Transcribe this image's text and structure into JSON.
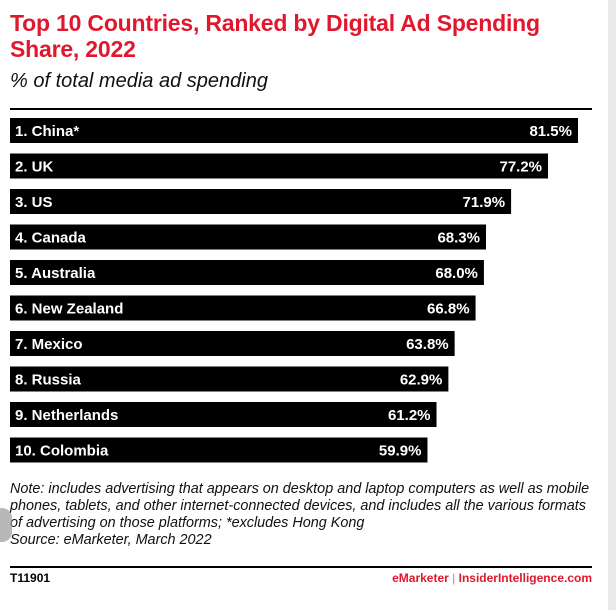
{
  "title": "Top 10 Countries, Ranked by Digital Ad Spending Share, 2022",
  "subtitle": "% of total media ad spending",
  "note": "Note: includes advertising that appears on desktop and laptop computers as well as mobile phones, tablets, and other internet-connected devices, and includes all the various formats of advertising on those platforms; *excludes Hong Kong",
  "source": "Source: eMarketer, March 2022",
  "footer": {
    "id": "T11901",
    "brand_left": "eMarketer",
    "separator": "|",
    "brand_right": "InsiderIntelligence.com"
  },
  "colors": {
    "accent": "#e0182d",
    "bar": "#000000",
    "bar_text": "#ffffff"
  },
  "chart_data": {
    "type": "bar",
    "orientation": "horizontal",
    "categories": [
      "1. China*",
      "2. UK",
      "3. US",
      "4. Canada",
      "5. Australia",
      "6. New Zealand",
      "7. Mexico",
      "8. Russia",
      "9. Netherlands",
      "10. Colombia"
    ],
    "values": [
      81.5,
      77.2,
      71.9,
      68.3,
      68.0,
      66.8,
      63.8,
      62.9,
      61.2,
      59.9
    ],
    "value_labels": [
      "81.5%",
      "77.2%",
      "71.9%",
      "68.3%",
      "68.0%",
      "66.8%",
      "63.8%",
      "62.9%",
      "61.2%",
      "59.9%"
    ],
    "xlim": [
      0,
      81.5
    ],
    "grid": false,
    "legend": "none"
  }
}
